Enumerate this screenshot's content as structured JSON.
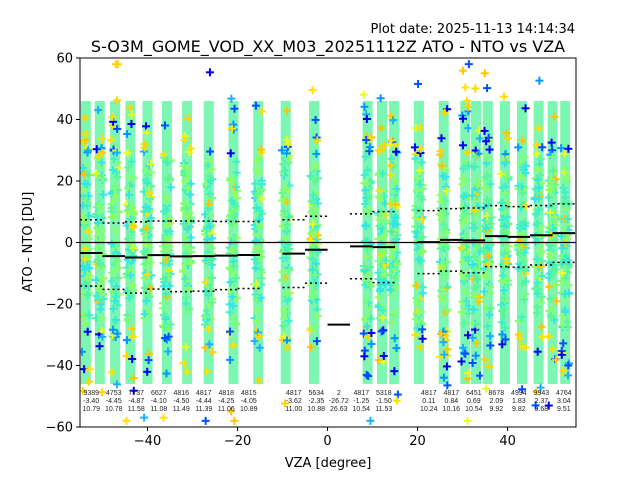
{
  "chart_data": {
    "type": "scatter",
    "title": "S-O3M_GOME_VOD_XX_M03_20251112Z ATO - NTO vs VZA",
    "subtitle": "Plot date: 2025-11-13 14:14:34",
    "xlabel": "VZA [degree]",
    "ylabel": "ATO - NTO [DU]",
    "xlim": [
      -55,
      55.2
    ],
    "ylim": [
      -60,
      60
    ],
    "xticks": [
      -40,
      -20,
      0,
      20,
      40
    ],
    "yticks": [
      -60,
      -40,
      -20,
      0,
      20,
      40,
      60
    ],
    "grid": false,
    "colors": {
      "core": [
        "#7dff7a",
        "#5cf59a",
        "#40f0c8",
        "#33e6e6",
        "#8cff66"
      ],
      "high": [
        "#ffd400",
        "#ffc400",
        "#e8ff20",
        "#ffe000"
      ],
      "low": [
        "#0050ff",
        "#0000f0",
        "#0096ff",
        "#1ab0ff"
      ],
      "stats": "#000000"
    },
    "scatter_columns_vza": [
      -53.7,
      -50.6,
      -47.2,
      -43.8,
      -40,
      -35.7,
      -31.2,
      -26.4,
      -20.9,
      -15.4,
      -9.3,
      -3,
      8.9,
      12.1,
      14.8,
      20.3,
      25.8,
      30.6,
      33,
      35.6,
      39.4,
      43.2,
      46.9,
      50,
      52.8
    ],
    "bins": [
      {
        "lo": -55,
        "hi": -50,
        "count": "9389",
        "mean": -3.4,
        "std": 10.79
      },
      {
        "lo": -50,
        "hi": -45,
        "count": "4753",
        "mean": -4.45,
        "std": 10.78
      },
      {
        "lo": -45,
        "hi": -40,
        "count": "7737",
        "mean": -4.87,
        "std": 11.58
      },
      {
        "lo": -40,
        "hi": -35,
        "count": "6627",
        "mean": -4.1,
        "std": 11.08
      },
      {
        "lo": -35,
        "hi": -30,
        "count": "4816",
        "mean": -4.5,
        "std": 11.49
      },
      {
        "lo": -30,
        "hi": -25,
        "count": "4817",
        "mean": -4.44,
        "std": 11.39
      },
      {
        "lo": -25,
        "hi": -20,
        "count": "4818",
        "mean": -4.25,
        "std": 11.06
      },
      {
        "lo": -20,
        "hi": -15,
        "count": "4815",
        "mean": -4.05,
        "std": 10.89
      },
      {
        "lo": -10,
        "hi": -5,
        "count": "4817",
        "mean": -3.62,
        "std": 11.0
      },
      {
        "lo": -5,
        "hi": 0,
        "count": "5634",
        "mean": -2.35,
        "std": 10.88
      },
      {
        "lo": 0,
        "hi": 5,
        "count": "2",
        "mean": -26.72,
        "std": 26.63
      },
      {
        "lo": 5,
        "hi": 10,
        "count": "4817",
        "mean": -1.25,
        "std": 10.54
      },
      {
        "lo": 10,
        "hi": 15,
        "count": "5318",
        "mean": -1.5,
        "std": 11.53
      },
      {
        "lo": 20,
        "hi": 25,
        "count": "4817",
        "mean": 0.11,
        "std": 10.24
      },
      {
        "lo": 25,
        "hi": 30,
        "count": "4817",
        "mean": 0.84,
        "std": 10.16
      },
      {
        "lo": 30,
        "hi": 35,
        "count": "6451",
        "mean": 0.69,
        "std": 10.54
      },
      {
        "lo": 35,
        "hi": 40,
        "count": "8678",
        "mean": 2.09,
        "std": 9.92
      },
      {
        "lo": 40,
        "hi": 45,
        "count": "4994",
        "mean": 1.83,
        "std": 9.82
      },
      {
        "lo": 45,
        "hi": 50,
        "count": "9943",
        "mean": 2.37,
        "std": 9.68
      },
      {
        "lo": 50,
        "hi": 55,
        "count": "4764",
        "mean": 3.04,
        "std": 9.51
      }
    ]
  }
}
